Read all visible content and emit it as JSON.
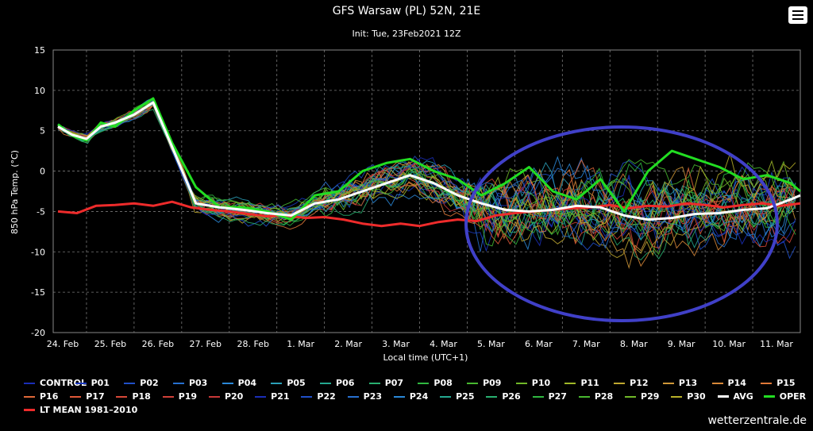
{
  "header": {
    "title": "GFS Warsaw (PL) 52N, 21E",
    "subtitle": "Init: Tue, 23Feb2021 12Z",
    "menu_icon": "hamburger-menu-icon"
  },
  "footer": {
    "source": "wetterzentrale.de"
  },
  "colors": {
    "avg": "#ffffff",
    "oper": "#22dd22",
    "lt_mean": "#ee2b2b",
    "annotation_ellipse": "#4040c8"
  },
  "chart_data": {
    "type": "line",
    "xlabel": "Local time (UTC+1)",
    "ylabel": "850 hPa Temp. (°C)",
    "ylim": [
      -20,
      15
    ],
    "yticks": [
      15,
      10,
      5,
      0,
      -5,
      -10,
      -15,
      -20
    ],
    "grid": true,
    "legend_position": "bottom",
    "categories": [
      "24. Feb",
      "25. Feb",
      "26. Feb",
      "27. Feb",
      "28. Feb",
      "1. Mar",
      "2. Mar",
      "3. Mar",
      "4. Mar",
      "5. Mar",
      "6. Mar",
      "7. Mar",
      "8. Mar",
      "9. Mar",
      "10. Mar",
      "11. Mar"
    ],
    "x_day_offsets": [
      0.5,
      1.5,
      2.5,
      3.5,
      4.5,
      5.5,
      6.5,
      7.5,
      8.5,
      9.5,
      10.5,
      11.5,
      12.5,
      13.5,
      14.5,
      15.5
    ],
    "x_range_days": [
      0.3,
      16.0
    ],
    "series": [
      {
        "name": "AVG",
        "color": "#ffffff",
        "x": [
          0.4,
          0.7,
          1.0,
          1.3,
          1.6,
          2.0,
          2.4,
          2.8,
          3.3,
          3.8,
          4.3,
          4.8,
          5.3,
          5.8,
          6.3,
          6.8,
          7.3,
          7.8,
          8.3,
          8.8,
          9.3,
          9.8,
          10.3,
          10.8,
          11.3,
          11.8,
          12.3,
          12.8,
          13.3,
          13.8,
          14.3,
          14.8,
          15.3,
          15.8,
          16.0
        ],
        "values": [
          5.5,
          4.5,
          4.0,
          5.5,
          6.0,
          7.0,
          8.5,
          3.0,
          -4.0,
          -4.5,
          -4.8,
          -5.2,
          -5.5,
          -4.0,
          -3.5,
          -2.5,
          -1.5,
          -0.5,
          -1.5,
          -3.0,
          -4.0,
          -4.8,
          -5.0,
          -4.8,
          -4.3,
          -4.5,
          -5.5,
          -6.0,
          -5.8,
          -5.3,
          -5.2,
          -4.8,
          -4.6,
          -3.5,
          -3.0
        ]
      },
      {
        "name": "OPER",
        "color": "#22dd22",
        "x": [
          0.4,
          0.7,
          1.0,
          1.3,
          1.6,
          2.0,
          2.4,
          2.8,
          3.3,
          3.8,
          4.3,
          4.8,
          5.3,
          5.8,
          6.3,
          6.8,
          7.3,
          7.8,
          8.3,
          8.8,
          9.3,
          9.8,
          10.3,
          10.8,
          11.3,
          11.8,
          12.3,
          12.8,
          13.3,
          13.8,
          14.3,
          14.8,
          15.3,
          15.8,
          16.0
        ],
        "values": [
          5.8,
          4.4,
          3.8,
          6.0,
          5.5,
          7.5,
          9.0,
          3.5,
          -2.0,
          -4.5,
          -4.5,
          -5.0,
          -6.0,
          -3.0,
          -2.5,
          0.0,
          1.0,
          1.5,
          0.0,
          -1.0,
          -3.0,
          -1.5,
          0.5,
          -2.5,
          -3.5,
          -1.0,
          -5.0,
          0.0,
          2.5,
          1.5,
          0.5,
          -1.0,
          -0.5,
          -1.5,
          -2.5
        ]
      },
      {
        "name": "LT MEAN 1981–2010",
        "color": "#ee2b2b",
        "x": [
          0.4,
          0.8,
          1.2,
          1.6,
          2.0,
          2.4,
          2.8,
          3.2,
          3.6,
          4.0,
          4.4,
          4.8,
          5.2,
          5.6,
          6.0,
          6.4,
          6.8,
          7.2,
          7.6,
          8.0,
          8.4,
          8.8,
          9.2,
          9.6,
          10.0,
          10.4,
          10.8,
          11.2,
          11.6,
          12.0,
          12.4,
          12.8,
          13.2,
          13.6,
          14.0,
          14.4,
          14.8,
          15.2,
          15.6,
          16.0
        ],
        "values": [
          -5.0,
          -5.2,
          -4.3,
          -4.2,
          -4.0,
          -4.3,
          -3.8,
          -4.5,
          -4.8,
          -5.0,
          -5.3,
          -5.6,
          -5.5,
          -5.8,
          -5.7,
          -6.0,
          -6.5,
          -6.8,
          -6.5,
          -6.8,
          -6.3,
          -6.0,
          -6.2,
          -5.5,
          -5.2,
          -5.0,
          -4.8,
          -4.6,
          -4.5,
          -4.2,
          -4.6,
          -4.3,
          -4.4,
          -4.0,
          -4.2,
          -4.5,
          -4.2,
          -4.0,
          -4.3,
          -4.0
        ]
      }
    ],
    "legend": [
      [
        {
          "name": "CONTROL",
          "color": "#1a2eb8"
        },
        {
          "name": "P01",
          "color": "#1a38c0"
        },
        {
          "name": "P02",
          "color": "#2050c8"
        },
        {
          "name": "P03",
          "color": "#2770d0"
        },
        {
          "name": "P04",
          "color": "#2a88d8"
        },
        {
          "name": "P05",
          "color": "#2aa0b8"
        },
        {
          "name": "P06",
          "color": "#24a890"
        },
        {
          "name": "P07",
          "color": "#28b070"
        },
        {
          "name": "P08",
          "color": "#30b840"
        },
        {
          "name": "P09",
          "color": "#48b830"
        },
        {
          "name": "P10",
          "color": "#70b828"
        },
        {
          "name": "P11",
          "color": "#a0b828"
        },
        {
          "name": "P12",
          "color": "#c0a830"
        },
        {
          "name": "P13",
          "color": "#d09838"
        },
        {
          "name": "P14",
          "color": "#d88838"
        },
        {
          "name": "P15",
          "color": "#e07838"
        }
      ],
      [
        {
          "name": "P16",
          "color": "#e06838"
        },
        {
          "name": "P17",
          "color": "#e05838"
        },
        {
          "name": "P18",
          "color": "#d84838"
        },
        {
          "name": "P19",
          "color": "#d04038"
        },
        {
          "name": "P20",
          "color": "#c83838"
        },
        {
          "name": "P21",
          "color": "#1a2eb8"
        },
        {
          "name": "P22",
          "color": "#2050c8"
        },
        {
          "name": "P23",
          "color": "#2770d0"
        },
        {
          "name": "P24",
          "color": "#2a88d8"
        },
        {
          "name": "P25",
          "color": "#24a890"
        },
        {
          "name": "P26",
          "color": "#28b070"
        },
        {
          "name": "P27",
          "color": "#30b840"
        },
        {
          "name": "P28",
          "color": "#48b830"
        },
        {
          "name": "P29",
          "color": "#70b828"
        },
        {
          "name": "P30",
          "color": "#b8b028"
        },
        {
          "name": "AVG",
          "color": "#ffffff",
          "thick": true
        },
        {
          "name": "OPER",
          "color": "#22dd22",
          "thick": true
        }
      ],
      [
        {
          "name": "LT MEAN 1981–2010",
          "color": "#ee2b2b",
          "thick": true
        }
      ]
    ]
  }
}
